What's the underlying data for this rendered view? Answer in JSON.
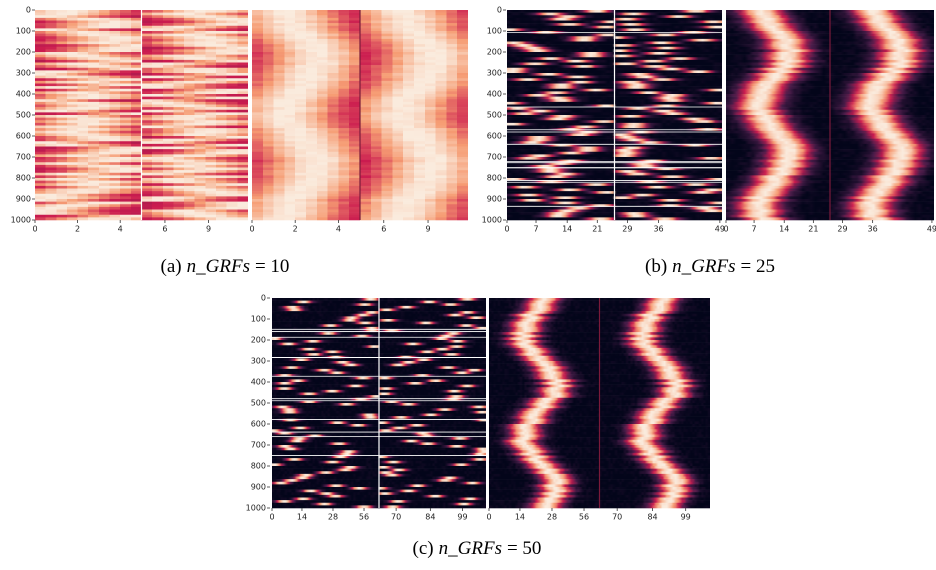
{
  "figures": [
    {
      "caption": {
        "label": "(a)",
        "variable": "n_GRFs",
        "relation": "= 10"
      },
      "ylim": [
        0,
        1000
      ],
      "yticks": [
        0,
        100,
        200,
        300,
        400,
        500,
        600,
        700,
        800,
        900,
        1000
      ],
      "left_xticks": [
        0,
        2,
        4,
        6,
        9
      ],
      "right_xticks": [
        0,
        2,
        4,
        6,
        9
      ]
    },
    {
      "caption": {
        "label": "(b)",
        "variable": "n_GRFs",
        "relation": "= 25"
      },
      "ylim": [
        0,
        1000
      ],
      "yticks": [
        0,
        100,
        200,
        300,
        400,
        500,
        600,
        700,
        800,
        900,
        1000
      ],
      "left_xticks": [
        0,
        7,
        14,
        21,
        29,
        36,
        49
      ],
      "right_xticks": [
        0,
        7,
        14,
        21,
        29,
        36,
        49
      ]
    },
    {
      "caption": {
        "label": "(c)",
        "variable": "n_GRFs",
        "relation": "= 50"
      },
      "ylim": [
        0,
        1000
      ],
      "yticks": [
        0,
        100,
        200,
        300,
        400,
        500,
        600,
        700,
        800,
        900,
        1000
      ],
      "left_xticks": [
        0,
        14,
        28,
        56,
        70,
        84,
        99
      ],
      "right_xticks": [
        0,
        14,
        28,
        56,
        70,
        84,
        99
      ]
    }
  ]
}
